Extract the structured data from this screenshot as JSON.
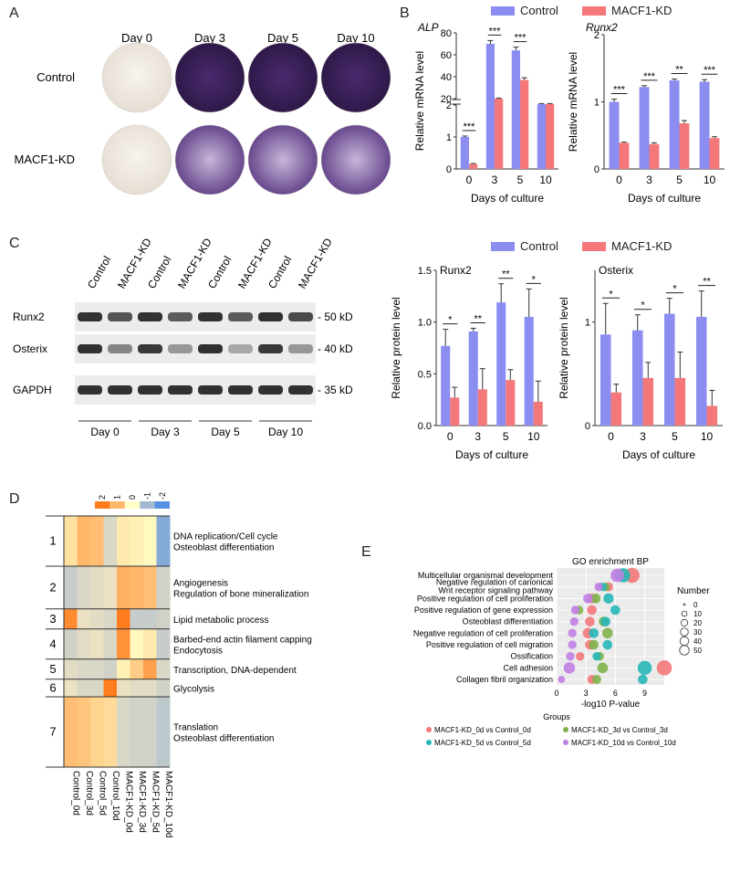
{
  "panels": {
    "a": "A",
    "b": "B",
    "c": "C",
    "d": "D",
    "e": "E"
  },
  "panel_a": {
    "columns": [
      "Day 0",
      "Day 3",
      "Day 5",
      "Day 10"
    ],
    "rows": [
      "Control",
      "MACF1-KD"
    ],
    "stain_level": [
      [
        0.0,
        0.95,
        0.95,
        0.95
      ],
      [
        0.0,
        0.55,
        0.75,
        0.7
      ]
    ]
  },
  "legend": {
    "control": "Control",
    "kd": "MACF1-KD",
    "colors": {
      "control": "#8b8df0",
      "kd": "#f4787a"
    }
  },
  "chart_data": [
    {
      "id": "B-ALP",
      "type": "bar",
      "title": "ALP",
      "xlabel": "Days of culture",
      "ylabel": "Relative mRNA level",
      "categories": [
        "0",
        "3",
        "5",
        "10"
      ],
      "axis_breaks": {
        "lower": [
          0,
          2
        ],
        "upper": [
          20,
          80
        ]
      },
      "y_ticks_lower": [
        "0",
        "1",
        "2"
      ],
      "y_ticks_upper": [
        "20",
        "40",
        "60",
        "80"
      ],
      "series": [
        {
          "name": "Control",
          "values": [
            1.0,
            70,
            64,
            15
          ],
          "errors": [
            0.03,
            3,
            3,
            0.5
          ]
        },
        {
          "name": "MACF1-KD",
          "values": [
            0.15,
            20,
            37,
            15
          ],
          "errors": [
            0.02,
            0.5,
            2,
            0.5
          ]
        }
      ],
      "significance": [
        "***",
        "***",
        "***",
        ""
      ]
    },
    {
      "id": "B-Runx2",
      "type": "bar",
      "title": "Runx2",
      "xlabel": "Days of culture",
      "ylabel": "Relative mRNA level",
      "categories": [
        "0",
        "3",
        "5",
        "10"
      ],
      "ylim": [
        0,
        2
      ],
      "y_ticks": [
        "0",
        "1",
        "2"
      ],
      "series": [
        {
          "name": "Control",
          "values": [
            1.0,
            1.22,
            1.32,
            1.3
          ],
          "errors": [
            0.04,
            0.02,
            0.02,
            0.03
          ]
        },
        {
          "name": "MACF1-KD",
          "values": [
            0.39,
            0.37,
            0.68,
            0.46
          ],
          "errors": [
            0.01,
            0.02,
            0.04,
            0.02
          ]
        }
      ],
      "significance": [
        "***",
        "***",
        "**",
        "***"
      ]
    },
    {
      "id": "C-Runx2",
      "type": "bar",
      "title": "Runx2",
      "xlabel": "Days of culture",
      "ylabel": "Relative protein level",
      "categories": [
        "0",
        "3",
        "5",
        "10"
      ],
      "ylim": [
        0,
        1.5
      ],
      "y_ticks": [
        "0.0",
        "0.5",
        "1.0",
        "1.5"
      ],
      "series": [
        {
          "name": "Control",
          "values": [
            0.77,
            0.91,
            1.19,
            1.05
          ],
          "errors": [
            0.16,
            0.03,
            0.18,
            0.27
          ]
        },
        {
          "name": "MACF1-KD",
          "values": [
            0.27,
            0.35,
            0.44,
            0.23
          ],
          "errors": [
            0.1,
            0.2,
            0.1,
            0.2
          ]
        }
      ],
      "significance": [
        "*",
        "**",
        "**",
        "*"
      ]
    },
    {
      "id": "C-Osterix",
      "type": "bar",
      "title": "Osterix",
      "xlabel": "Days of culture",
      "ylabel": "Relative protein level",
      "categories": [
        "0",
        "3",
        "5",
        "10"
      ],
      "ylim": [
        0,
        1.5
      ],
      "y_ticks": [
        "0",
        "1"
      ],
      "series": [
        {
          "name": "Control",
          "values": [
            0.88,
            0.92,
            1.08,
            1.05
          ],
          "errors": [
            0.3,
            0.15,
            0.15,
            0.25
          ]
        },
        {
          "name": "MACF1-KD",
          "values": [
            0.32,
            0.46,
            0.46,
            0.19
          ],
          "errors": [
            0.08,
            0.15,
            0.25,
            0.15
          ]
        }
      ],
      "significance": [
        "*",
        "*",
        "*",
        "**"
      ]
    },
    {
      "id": "E",
      "type": "scatter",
      "title": "GO enrichment BP",
      "xlabel": "-log10 P-value",
      "xlim": [
        0,
        11
      ],
      "x_ticks": [
        "0",
        "3",
        "6",
        "9"
      ],
      "terms": [
        "Multicellular organismal development",
        "Negative regulation of canonical Wnt receptor signaling pathway",
        "Positive regulation of cell proliferation",
        "Positive regulation of gene expression",
        "Osteoblast differentiation",
        "Negative regulation of cell proliferation",
        "Positive regulation of cell migration",
        "Ossification",
        "Cell adhesion",
        "Collagen fibril organization"
      ],
      "series": [
        {
          "name": "MACF1-KD_0d vs Control_0d",
          "color": "#f4787a",
          "points": [
            [
              7.7,
              0,
              55
            ],
            [
              5.3,
              1,
              12
            ],
            [
              3.6,
              2,
              15
            ],
            [
              3.6,
              3,
              15
            ],
            [
              3.4,
              4,
              15
            ],
            [
              3.2,
              5,
              20
            ],
            [
              3.4,
              6,
              15
            ],
            [
              2.4,
              7,
              10
            ],
            [
              11,
              8,
              55
            ],
            [
              3.6,
              9,
              12
            ]
          ]
        },
        {
          "name": "MACF1-KD_3d vs Control_3d",
          "color": "#7fb24a",
          "points": [
            [
              6.5,
              0,
              30
            ],
            [
              5.0,
              1,
              10
            ],
            [
              4.0,
              2,
              15
            ],
            [
              2.3,
              3,
              10
            ],
            [
              4.8,
              4,
              15
            ],
            [
              5.2,
              5,
              20
            ],
            [
              3.8,
              6,
              15
            ],
            [
              4.4,
              7,
              10
            ],
            [
              4.7,
              8,
              20
            ],
            [
              4.1,
              9,
              12
            ]
          ]
        },
        {
          "name": "MACF1-KD_5d vs Control_5d",
          "color": "#27b7b7",
          "points": [
            [
              6.8,
              0,
              45
            ],
            [
              4.7,
              1,
              10
            ],
            [
              5.3,
              2,
              18
            ],
            [
              6.0,
              3,
              15
            ],
            [
              5.0,
              4,
              15
            ],
            [
              3.8,
              5,
              15
            ],
            [
              5.2,
              6,
              15
            ],
            [
              4.1,
              7,
              10
            ],
            [
              9.0,
              8,
              45
            ],
            [
              8.8,
              9,
              15
            ]
          ]
        },
        {
          "name": "MACF1-KD_10d vs Control_10d",
          "color": "#c080e6",
          "points": [
            [
              6.2,
              0,
              40
            ],
            [
              4.3,
              1,
              10
            ],
            [
              3.2,
              2,
              15
            ],
            [
              1.9,
              3,
              10
            ],
            [
              1.8,
              4,
              10
            ],
            [
              1.6,
              5,
              10
            ],
            [
              1.6,
              6,
              10
            ],
            [
              1.4,
              7,
              10
            ],
            [
              1.3,
              8,
              25
            ],
            [
              0.5,
              9,
              5
            ]
          ]
        }
      ],
      "size_legend": {
        "title": "Number",
        "values": [
          "0",
          "10",
          "20",
          "30",
          "40",
          "50"
        ]
      },
      "groups_title": "Groups"
    }
  ],
  "panel_c_blot": {
    "lanes": [
      "Control",
      "MACF1-KD",
      "Control",
      "MACF1-KD",
      "Control",
      "MACF1-KD",
      "Control",
      "MACF1-KD"
    ],
    "proteins": [
      "Runx2",
      "Osterix",
      "GAPDH"
    ],
    "markers": [
      "- 50 kD",
      "- 40 kD",
      "- 35 kD"
    ],
    "groups": [
      "Day 0",
      "Day 3",
      "Day 5",
      "Day 10"
    ],
    "intensity": [
      [
        0.95,
        0.75,
        0.95,
        0.7,
        0.95,
        0.7,
        0.95,
        0.8
      ],
      [
        0.95,
        0.45,
        0.9,
        0.35,
        0.95,
        0.25,
        0.9,
        0.35
      ],
      [
        0.95,
        0.95,
        0.95,
        0.95,
        0.95,
        0.95,
        0.95,
        0.95
      ]
    ]
  },
  "heatmap": {
    "color_labels": [
      "2",
      "1",
      "0",
      "-1",
      "-2"
    ],
    "clusters": [
      "1",
      "2",
      "3",
      "4",
      "5",
      "6",
      "7"
    ],
    "annotations": [
      "DNA replication/Cell cycle\nOsteoblast differentiation",
      "Angiogenesis\nRegulation of bone mineralization",
      "Lipid metabolic process",
      "Barbed-end actin filament capping\nEndocytosis",
      "Transcription, DNA-dependent",
      "Glycolysis",
      "Translation\nOsteoblast differentiation"
    ],
    "columns": [
      "Control_0d",
      "Control_3d",
      "Control_5d",
      "Control_10d",
      "MACF1-KD_0d",
      "MACF1-KD_3d",
      "MACF1-KD_5d",
      "MACF1-KD_10d"
    ],
    "cluster_fraction": [
      0.2,
      0.17,
      0.08,
      0.12,
      0.08,
      0.07,
      0.28
    ],
    "z": [
      [
        0.4,
        1.0,
        0.9,
        -0.4,
        0.3,
        0.2,
        0.1,
        -1.3
      ],
      [
        -0.6,
        -0.4,
        -0.3,
        -0.2,
        1.1,
        1.0,
        0.9,
        -0.5
      ],
      [
        1.6,
        -0.2,
        -0.3,
        -0.4,
        1.8,
        -0.6,
        -0.6,
        -0.5
      ],
      [
        -0.5,
        -0.3,
        -0.2,
        -0.4,
        1.5,
        0.1,
        0.3,
        -0.6
      ],
      [
        -0.3,
        -0.4,
        -0.4,
        -0.5,
        0.2,
        0.7,
        1.3,
        -0.4
      ],
      [
        -0.2,
        -0.4,
        -0.4,
        1.9,
        -0.2,
        -0.3,
        -0.3,
        -0.5
      ],
      [
        0.9,
        0.8,
        0.6,
        0.5,
        -0.4,
        -0.5,
        -0.5,
        -0.7
      ]
    ]
  }
}
